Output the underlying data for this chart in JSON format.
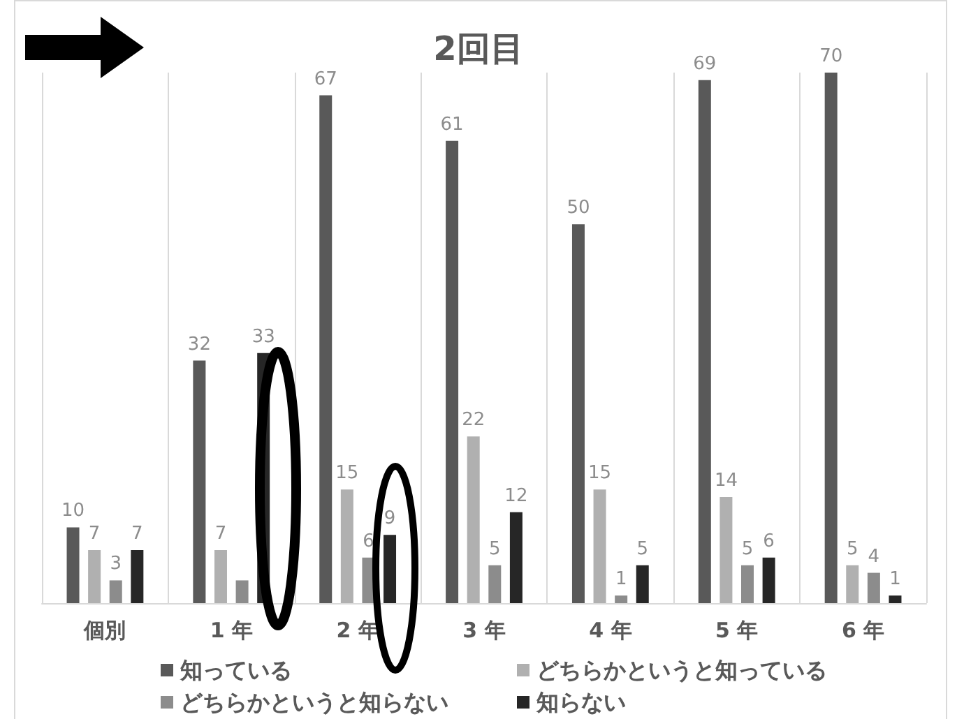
{
  "chart_data": {
    "type": "bar",
    "title": "2回目",
    "categories": [
      "個別",
      "1 年",
      "2 年",
      "3 年",
      "4 年",
      "5 年",
      "6 年"
    ],
    "series": [
      {
        "name": "知っている",
        "color": "#595959",
        "values": [
          10,
          32,
          67,
          61,
          50,
          69,
          70
        ],
        "value_labels": [
          "10",
          "32",
          "67",
          "61",
          "50",
          "69",
          "70"
        ]
      },
      {
        "name": "どちらかというと知っている",
        "color": "#b0b0b0",
        "values": [
          7,
          7,
          15,
          22,
          15,
          14,
          5
        ],
        "value_labels": [
          "7",
          "7",
          "15",
          "22",
          "15",
          "14",
          "5"
        ]
      },
      {
        "name": "どちらかというと知らない",
        "color": "#8c8c8c",
        "values": [
          3,
          3,
          6,
          5,
          1,
          5,
          4
        ],
        "value_labels": [
          "3",
          null,
          "6",
          "5",
          "1",
          "5",
          "4"
        ]
      },
      {
        "name": "知らない",
        "color": "#262626",
        "values": [
          7,
          33,
          9,
          12,
          5,
          6,
          1
        ],
        "value_labels": [
          "7",
          "33",
          "9",
          "12",
          "5",
          "6",
          "1"
        ]
      }
    ],
    "grid": "x",
    "legend": "bottom"
  }
}
